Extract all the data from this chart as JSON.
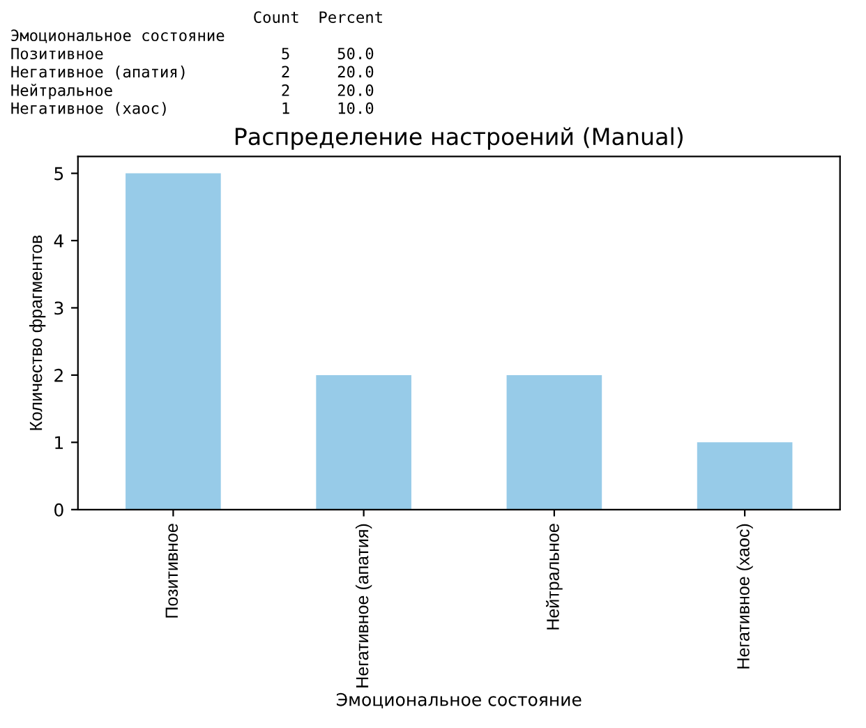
{
  "chart_data": {
    "type": "bar",
    "title": "Распределение настроений (Manual)",
    "xlabel": "Эмоциональное состояние",
    "ylabel": "Количество фрагментов",
    "categories": [
      "Позитивное",
      "Негативное (апатия)",
      "Нейтральное",
      "Негативное (хаос)"
    ],
    "values": [
      5,
      2,
      2,
      1
    ],
    "color": "#97cbe8",
    "ylim": [
      0,
      5.25
    ],
    "yticks": [
      0,
      1,
      2,
      3,
      4,
      5
    ],
    "grid": false,
    "annotations": [
      "                          Count  Percent",
      "Эмоциональное состояние",
      "Позитивное                   5     50.0",
      "Негативное (апатия)          2     20.0",
      "Нейтральное                  2     20.0",
      "Негативное (хаос)            1     10.0"
    ]
  }
}
